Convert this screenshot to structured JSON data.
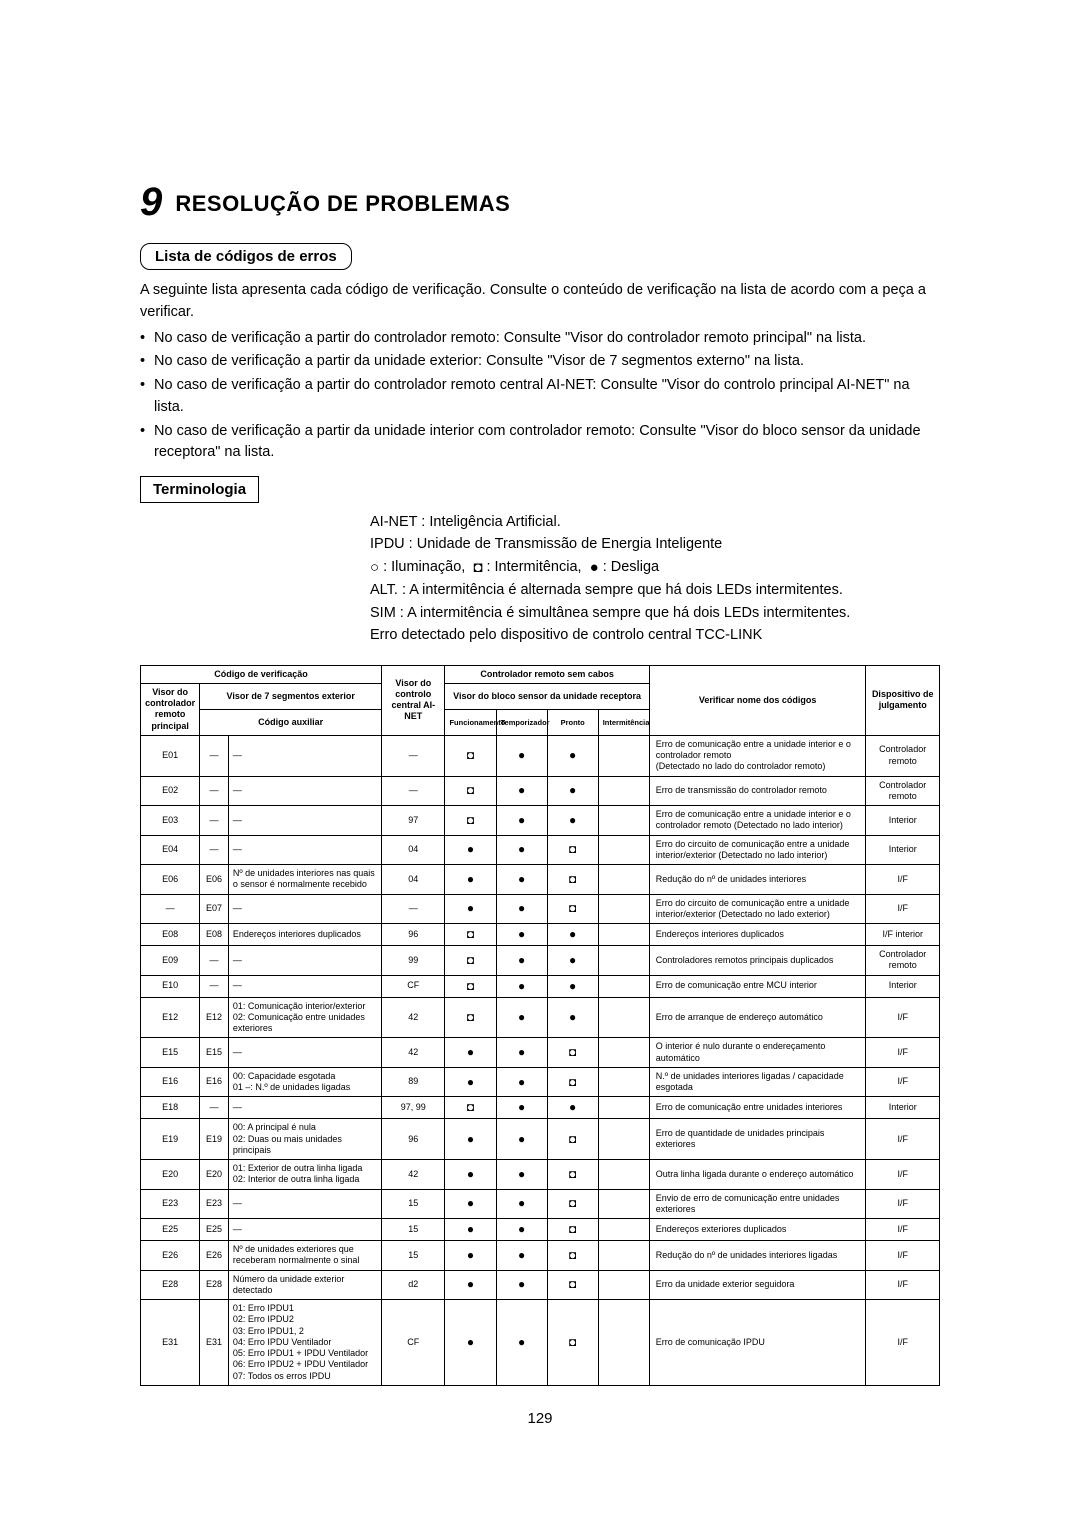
{
  "chapter": {
    "num": "9",
    "title": "RESOLUÇÃO DE PROBLEMAS"
  },
  "section1": {
    "heading": "Lista de códigos de erros",
    "intro": "A seguinte lista apresenta cada código de verificação. Consulte o conteúdo de verificação na lista de acordo com a peça a verificar.",
    "bullets": [
      "No caso de verificação a partir do controlador remoto: Consulte \"Visor do controlador remoto principal\" na lista.",
      "No caso de verificação a partir da unidade exterior: Consulte \"Visor de 7 segmentos externo\" na lista.",
      "No caso de verificação a partir do controlador remoto central AI-NET: Consulte \"Visor do controlo principal AI-NET\" na lista.",
      "No caso de verificação a partir da unidade interior com controlador remoto: Consulte \"Visor do bloco sensor da unidade receptora\" na lista."
    ]
  },
  "section2": {
    "heading": "Terminologia",
    "lines": [
      "AI-NET : Inteligência Artificial.",
      "IPDU : Unidade de Transmissão de Energia Inteligente",
      " : Iluminação,   : Intermitência,   : Desliga",
      "ALT. : A intermitência é alternada sempre que há dois LEDs intermitentes.",
      "SIM : A intermitência é simultânea sempre que há dois LEDs intermitentes.",
      "Erro detectado pelo dispositivo de controlo central TCC-LINK"
    ],
    "symbols": {
      "open": "○",
      "blink": "◘",
      "off": "●"
    }
  },
  "table": {
    "hdr": {
      "codigo": "Código de verificação",
      "wireless": "Controlador remoto sem cabos",
      "visorMain": "Visor do controlador remoto principal",
      "visor7": "Visor de 7 segmentos exterior",
      "aux": "Código auxiliar",
      "ainet": "Visor do controlo central AI-NET",
      "sensor": "Visor do bloco sensor da unidade receptora",
      "func": "Funcionamento",
      "temp": "Temporizador",
      "pronto": "Pronto",
      "inter": "Intermitência",
      "verif": "Verificar nome dos códigos",
      "device": "Dispositivo de julgamento"
    },
    "rows": [
      {
        "main": "E01",
        "seg1": "—",
        "aux": "—",
        "ainet": "—",
        "led": [
          "◘",
          "●",
          "●",
          ""
        ],
        "name": "Erro de comunicação entre a unidade interior e o controlador remoto\n(Detectado no lado do controlador remoto)",
        "dev": "Controlador remoto"
      },
      {
        "main": "E02",
        "seg1": "—",
        "aux": "—",
        "ainet": "—",
        "led": [
          "◘",
          "●",
          "●",
          ""
        ],
        "name": "Erro de transmissão do controlador remoto",
        "dev": "Controlador remoto"
      },
      {
        "main": "E03",
        "seg1": "—",
        "aux": "—",
        "ainet": "97",
        "led": [
          "◘",
          "●",
          "●",
          ""
        ],
        "name": "Erro de comunicação entre a unidade interior e o controlador remoto (Detectado no lado interior)",
        "dev": "Interior"
      },
      {
        "main": "E04",
        "seg1": "—",
        "aux": "—",
        "ainet": "04",
        "led": [
          "●",
          "●",
          "◘",
          ""
        ],
        "name": "Erro do circuito de comunicação entre a unidade interior/exterior (Detectado no lado interior)",
        "dev": "Interior"
      },
      {
        "main": "E06",
        "seg1": "E06",
        "aux": "Nº de unidades interiores nas quais o sensor é normalmente recebido",
        "ainet": "04",
        "led": [
          "●",
          "●",
          "◘",
          ""
        ],
        "name": "Redução do nº de unidades interiores",
        "dev": "I/F"
      },
      {
        "main": "—",
        "seg1": "E07",
        "aux": "—",
        "ainet": "—",
        "led": [
          "●",
          "●",
          "◘",
          ""
        ],
        "name": "Erro do circuito de comunicação entre a unidade interior/exterior (Detectado no lado exterior)",
        "dev": "I/F"
      },
      {
        "main": "E08",
        "seg1": "E08",
        "aux": "Endereços interiores duplicados",
        "ainet": "96",
        "led": [
          "◘",
          "●",
          "●",
          ""
        ],
        "name": "Endereços interiores duplicados",
        "dev": "I/F interior"
      },
      {
        "main": "E09",
        "seg1": "—",
        "aux": "—",
        "ainet": "99",
        "led": [
          "◘",
          "●",
          "●",
          ""
        ],
        "name": "Controladores remotos principais duplicados",
        "dev": "Controlador remoto"
      },
      {
        "main": "E10",
        "seg1": "—",
        "aux": "—",
        "ainet": "CF",
        "led": [
          "◘",
          "●",
          "●",
          ""
        ],
        "name": "Erro de comunicação entre MCU interior",
        "dev": "Interior"
      },
      {
        "main": "E12",
        "seg1": "E12",
        "aux": "01: Comunicação interior/exterior\n02: Comunicação entre unidades exteriores",
        "ainet": "42",
        "led": [
          "◘",
          "●",
          "●",
          ""
        ],
        "name": "Erro de arranque de endereço automático",
        "dev": "I/F"
      },
      {
        "main": "E15",
        "seg1": "E15",
        "aux": "—",
        "ainet": "42",
        "led": [
          "●",
          "●",
          "◘",
          ""
        ],
        "name": "O interior é nulo durante o endereçamento automático",
        "dev": "I/F"
      },
      {
        "main": "E16",
        "seg1": "E16",
        "aux": "00: Capacidade esgotada\n01 –: N.º de unidades ligadas",
        "ainet": "89",
        "led": [
          "●",
          "●",
          "◘",
          ""
        ],
        "name": "N.º de unidades interiores ligadas / capacidade esgotada",
        "dev": "I/F"
      },
      {
        "main": "E18",
        "seg1": "—",
        "aux": "—",
        "ainet": "97, 99",
        "led": [
          "◘",
          "●",
          "●",
          ""
        ],
        "name": "Erro de comunicação entre unidades interiores",
        "dev": "Interior"
      },
      {
        "main": "E19",
        "seg1": "E19",
        "aux": "00: A principal é nula\n02: Duas ou mais unidades principais",
        "ainet": "96",
        "led": [
          "●",
          "●",
          "◘",
          ""
        ],
        "name": "Erro de quantidade de unidades principais exteriores",
        "dev": "I/F"
      },
      {
        "main": "E20",
        "seg1": "E20",
        "aux": "01: Exterior de outra linha ligada\n02: Interior de outra linha ligada",
        "ainet": "42",
        "led": [
          "●",
          "●",
          "◘",
          ""
        ],
        "name": "Outra linha ligada durante o endereço automático",
        "dev": "I/F"
      },
      {
        "main": "E23",
        "seg1": "E23",
        "aux": "—",
        "ainet": "15",
        "led": [
          "●",
          "●",
          "◘",
          ""
        ],
        "name": "Envio de erro de comunicação entre unidades exteriores",
        "dev": "I/F"
      },
      {
        "main": "E25",
        "seg1": "E25",
        "aux": "—",
        "ainet": "15",
        "led": [
          "●",
          "●",
          "◘",
          ""
        ],
        "name": "Endereços exteriores duplicados",
        "dev": "I/F"
      },
      {
        "main": "E26",
        "seg1": "E26",
        "aux": "Nº de unidades exteriores que receberam normalmente o sinal",
        "ainet": "15",
        "led": [
          "●",
          "●",
          "◘",
          ""
        ],
        "name": "Redução do nº de unidades interiores ligadas",
        "dev": "I/F"
      },
      {
        "main": "E28",
        "seg1": "E28",
        "aux": "Número da unidade exterior detectado",
        "ainet": "d2",
        "led": [
          "●",
          "●",
          "◘",
          ""
        ],
        "name": "Erro da unidade exterior seguidora",
        "dev": "I/F"
      },
      {
        "main": "E31",
        "seg1": "E31",
        "aux": "01: Erro IPDU1\n02: Erro IPDU2\n03: Erro IPDU1, 2\n04: Erro IPDU Ventilador\n05: Erro IPDU1 + IPDU Ventilador\n06: Erro IPDU2 + IPDU Ventilador\n07: Todos os erros IPDU",
        "ainet": "CF",
        "led": [
          "●",
          "●",
          "◘",
          ""
        ],
        "name": "Erro de comunicação IPDU",
        "dev": "I/F"
      }
    ]
  },
  "pageNumber": "129",
  "colors": {
    "text": "#000000",
    "bg": "#ffffff",
    "border": "#000000"
  }
}
